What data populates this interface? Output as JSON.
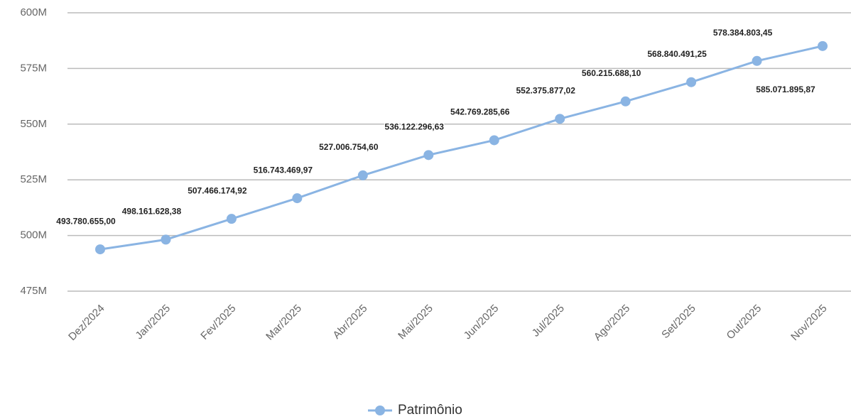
{
  "chart_data": {
    "type": "line",
    "categories": [
      "Dez/2024",
      "Jan/2025",
      "Fev/2025",
      "Mar/2025",
      "Abr/2025",
      "Mai/2025",
      "Jun/2025",
      "Jul/2025",
      "Ago/2025",
      "Set/2025",
      "Out/2025",
      "Nov/2025"
    ],
    "series": [
      {
        "name": "Patrimônio",
        "color": "#8ab4e3",
        "values": [
          493780655.0,
          498161628.38,
          507466174.92,
          516743469.97,
          527006754.6,
          536122296.63,
          542769285.66,
          552375877.02,
          560215688.1,
          568840491.25,
          578384803.45,
          585071895.87
        ],
        "value_labels": [
          "493.780.655,00",
          "498.161.628,38",
          "507.466.174,92",
          "516.743.469,97",
          "527.006.754,60",
          "536.122.296,63",
          "542.769.285,66",
          "552.375.877,02",
          "560.215.688,10",
          "568.840.491,25",
          "578.384.803,45",
          "585.071.895,87"
        ]
      }
    ],
    "ylim": [
      475000000,
      600000000
    ],
    "yticks": [
      {
        "value": 475000000,
        "label": "475M"
      },
      {
        "value": 500000000,
        "label": "500M"
      },
      {
        "value": 525000000,
        "label": "525M"
      },
      {
        "value": 550000000,
        "label": "550M"
      },
      {
        "value": 575000000,
        "label": "575M"
      },
      {
        "value": 600000000,
        "label": "600M"
      }
    ],
    "grid": true,
    "legend": "bottom"
  }
}
